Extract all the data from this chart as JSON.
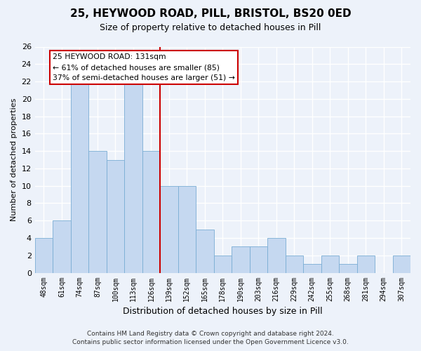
{
  "title": "25, HEYWOOD ROAD, PILL, BRISTOL, BS20 0ED",
  "subtitle": "Size of property relative to detached houses in Pill",
  "xlabel": "Distribution of detached houses by size in Pill",
  "ylabel": "Number of detached properties",
  "bar_labels": [
    "48sqm",
    "61sqm",
    "74sqm",
    "87sqm",
    "100sqm",
    "113sqm",
    "126sqm",
    "139sqm",
    "152sqm",
    "165sqm",
    "178sqm",
    "190sqm",
    "203sqm",
    "216sqm",
    "229sqm",
    "242sqm",
    "255sqm",
    "268sqm",
    "281sqm",
    "294sqm",
    "307sqm"
  ],
  "bar_values": [
    4,
    6,
    22,
    14,
    13,
    22,
    14,
    10,
    10,
    5,
    2,
    3,
    3,
    4,
    2,
    1,
    2,
    1,
    2,
    0,
    2
  ],
  "bar_color": "#c5d8f0",
  "bar_edge_color": "#7aadd4",
  "vline_index": 6,
  "vline_color": "#cc0000",
  "annotation_title": "25 HEYWOOD ROAD: 131sqm",
  "annotation_line2": "← 61% of detached houses are smaller (85)",
  "annotation_line3": "37% of semi-detached houses are larger (51) →",
  "annotation_box_color": "#ffffff",
  "annotation_box_edge": "#cc0000",
  "ylim": [
    0,
    26
  ],
  "yticks": [
    0,
    2,
    4,
    6,
    8,
    10,
    12,
    14,
    16,
    18,
    20,
    22,
    24,
    26
  ],
  "footer_line1": "Contains HM Land Registry data © Crown copyright and database right 2024.",
  "footer_line2": "Contains public sector information licensed under the Open Government Licence v3.0.",
  "bg_color": "#edf2fa",
  "grid_color": "#ffffff"
}
